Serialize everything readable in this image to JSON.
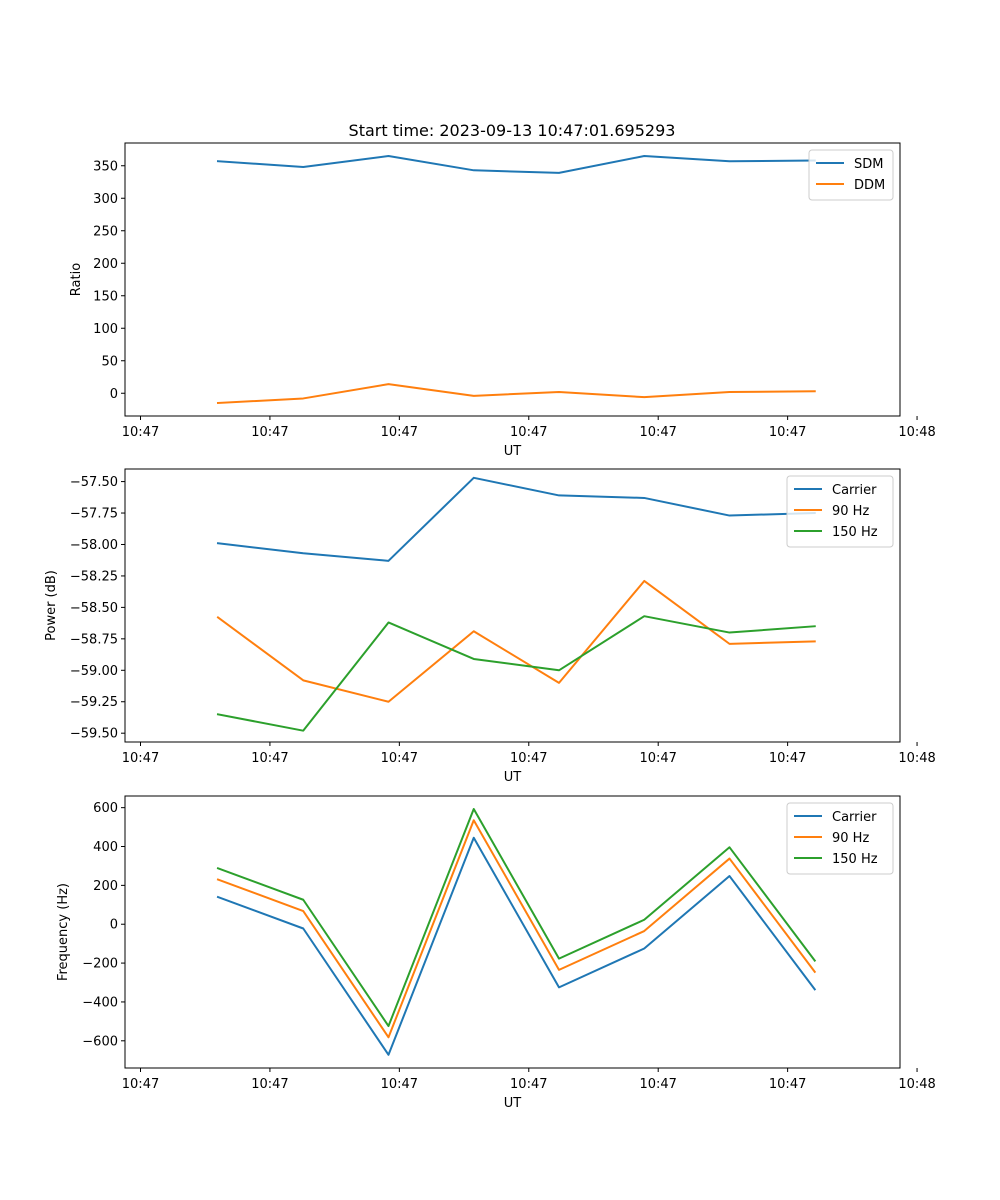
{
  "figure_title": "Start time: 2023-09-13 10:47:01.695293",
  "colors": {
    "blue": "#1f77b4",
    "orange": "#ff7f0e",
    "green": "#2ca02c"
  },
  "chart_data": [
    {
      "type": "line",
      "xlabel": "UT",
      "ylabel": "Ratio",
      "xlim": [
        0,
        100
      ],
      "ylim": [
        -35,
        385
      ],
      "x": [
        12,
        23,
        34,
        45,
        56,
        67,
        78,
        89
      ],
      "x_ticks": [
        2,
        18.7,
        35.4,
        52.1,
        68.8,
        85.5,
        102.2
      ],
      "x_tick_labels": [
        "10:47",
        "10:47",
        "10:47",
        "10:47",
        "10:47",
        "10:47",
        "10:48"
      ],
      "y_ticks": [
        0,
        50,
        100,
        150,
        200,
        250,
        300,
        350
      ],
      "y_tick_labels": [
        "0",
        "50",
        "100",
        "150",
        "200",
        "250",
        "300",
        "350"
      ],
      "legend_position": "top-right",
      "series": [
        {
          "name": "SDM",
          "color": "blue",
          "values": [
            357,
            348,
            365,
            343,
            339,
            365,
            357,
            358
          ]
        },
        {
          "name": "DDM",
          "color": "orange",
          "values": [
            -15,
            -8,
            14,
            -4,
            2,
            -6,
            2,
            3
          ]
        }
      ]
    },
    {
      "type": "line",
      "xlabel": "UT",
      "ylabel": "Power (dB)",
      "xlim": [
        0,
        100
      ],
      "ylim": [
        -59.57,
        -57.4
      ],
      "x": [
        12,
        23,
        34,
        45,
        56,
        67,
        78,
        89
      ],
      "x_ticks": [
        2,
        18.7,
        35.4,
        52.1,
        68.8,
        85.5,
        102.2
      ],
      "x_tick_labels": [
        "10:47",
        "10:47",
        "10:47",
        "10:47",
        "10:47",
        "10:47",
        "10:48"
      ],
      "y_ticks": [
        -59.5,
        -59.25,
        -59.0,
        -58.75,
        -58.5,
        -58.25,
        -58.0,
        -57.75,
        -57.5
      ],
      "y_tick_labels": [
        "−59.50",
        "−59.25",
        "−59.00",
        "−58.75",
        "−58.50",
        "−58.25",
        "−58.00",
        "−57.75",
        "−57.50"
      ],
      "legend_position": "top-right",
      "series": [
        {
          "name": "Carrier",
          "color": "blue",
          "values": [
            -57.99,
            -58.07,
            -58.13,
            -57.47,
            -57.61,
            -57.63,
            -57.77,
            -57.75
          ]
        },
        {
          "name": "90 Hz",
          "color": "orange",
          "values": [
            -58.58,
            -59.08,
            -59.25,
            -58.69,
            -59.1,
            -58.29,
            -58.79,
            -58.77
          ]
        },
        {
          "name": "150 Hz",
          "color": "green",
          "values": [
            -59.35,
            -59.48,
            -58.62,
            -58.91,
            -59.0,
            -58.57,
            -58.7,
            -58.65
          ]
        }
      ]
    },
    {
      "type": "line",
      "xlabel": "UT",
      "ylabel": "Frequency (Hz)",
      "xlim": [
        0,
        100
      ],
      "ylim": [
        -740,
        660
      ],
      "x": [
        12,
        23,
        34,
        45,
        56,
        67,
        78,
        89
      ],
      "x_ticks": [
        2,
        18.7,
        35.4,
        52.1,
        68.8,
        85.5,
        102.2
      ],
      "x_tick_labels": [
        "10:47",
        "10:47",
        "10:47",
        "10:47",
        "10:47",
        "10:47",
        "10:48"
      ],
      "y_ticks": [
        -600,
        -400,
        -200,
        0,
        200,
        400,
        600
      ],
      "y_tick_labels": [
        "−600",
        "−400",
        "−200",
        "0",
        "200",
        "400",
        "600"
      ],
      "legend_position": "top-right",
      "series": [
        {
          "name": "Carrier",
          "color": "blue",
          "values": [
            140,
            -22,
            -672,
            445,
            -325,
            -125,
            248,
            -335
          ]
        },
        {
          "name": "90 Hz",
          "color": "orange",
          "values": [
            230,
            68,
            -582,
            535,
            -235,
            -35,
            338,
            -245
          ]
        },
        {
          "name": "150 Hz",
          "color": "green",
          "values": [
            288,
            126,
            -524,
            593,
            -177,
            23,
            396,
            -187
          ]
        }
      ]
    }
  ]
}
